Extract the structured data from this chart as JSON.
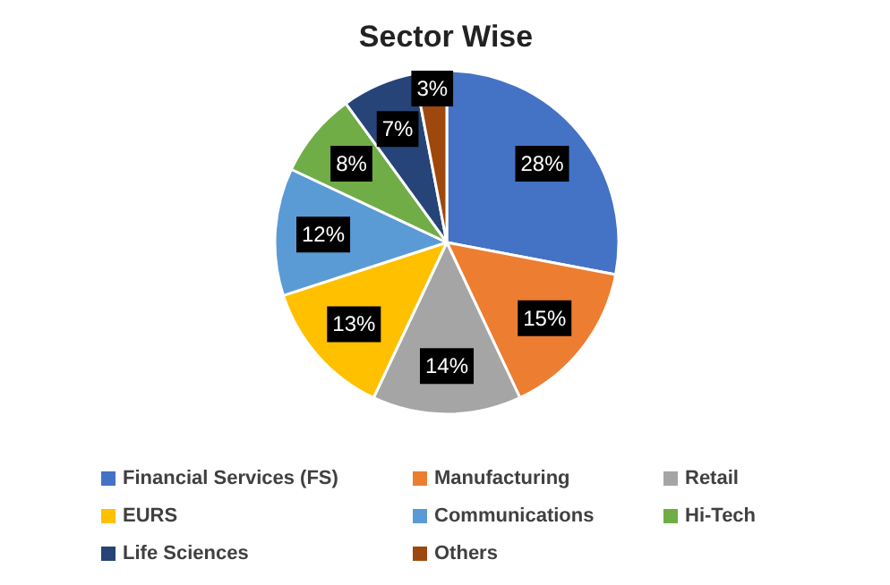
{
  "chart_data": {
    "type": "pie",
    "title": "Sector Wise",
    "categories": [
      "Financial Services (FS)",
      "Manufacturing",
      "Retail",
      "EURS",
      "Communications",
      "Hi-Tech",
      "Life Sciences",
      "Others"
    ],
    "values": [
      28,
      15,
      14,
      13,
      12,
      8,
      7,
      3
    ],
    "value_labels": [
      "28%",
      "15%",
      "14%",
      "13%",
      "12%",
      "8%",
      "7%",
      "3%"
    ],
    "colors": [
      "#4472c4",
      "#ed7d31",
      "#a5a5a5",
      "#ffc000",
      "#5b9bd5",
      "#70ad47",
      "#264478",
      "#9e480e"
    ],
    "legend": "bottom"
  }
}
